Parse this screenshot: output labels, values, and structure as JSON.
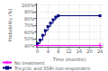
{
  "chart_data": {
    "type": "line",
    "xlabel": "Time (months)",
    "ylabel": "Probability (%)",
    "xlim": [
      -0.5,
      25
    ],
    "ylim": [
      0.38,
      1.02
    ],
    "xticks": [
      0,
      4,
      8,
      12,
      16,
      20,
      24
    ],
    "yticks": [
      {
        "value": 0.4,
        "label": "40%"
      },
      {
        "value": 0.5,
        "label": "50%"
      },
      {
        "value": 0.6,
        "label": "60%"
      },
      {
        "value": 0.7,
        "label": "70%"
      },
      {
        "value": 0.8,
        "label": "80%"
      },
      {
        "value": 0.9,
        "label": "90%"
      },
      {
        "value": 1.0,
        "label": "100%"
      }
    ],
    "grid": true,
    "legend": "lower left",
    "series": [
      {
        "name": "No treatment",
        "color": "#ff00ff",
        "marker": "plus",
        "x": [
          0,
          24
        ],
        "values": [
          0.4,
          0.4
        ]
      },
      {
        "name": "Tricyclic and SSRI non-responders",
        "color": "#000080",
        "marker": "square",
        "line_style": "step",
        "x": [
          0,
          1,
          2,
          3,
          4,
          5,
          6,
          7,
          8,
          24
        ],
        "values": [
          0.43,
          0.48,
          0.55,
          0.62,
          0.68,
          0.73,
          0.78,
          0.82,
          0.84,
          0.84
        ]
      }
    ]
  }
}
